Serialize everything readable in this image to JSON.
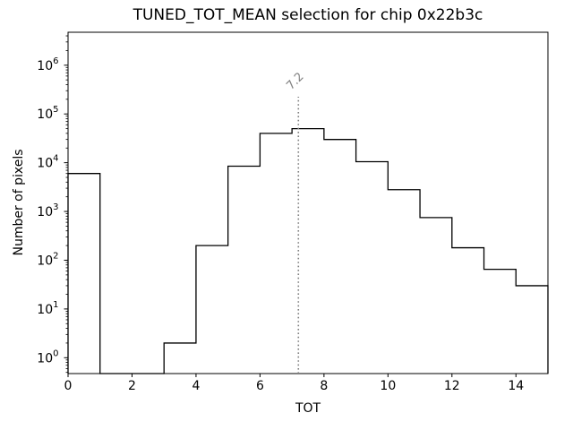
{
  "chart_data": {
    "type": "step-histogram",
    "title": "TUNED_TOT_MEAN selection for chip 0x22b3c",
    "xlabel": "TOT",
    "ylabel": "Number of pixels",
    "xlim": [
      0,
      15
    ],
    "ylog": true,
    "ylim_log10": [
      -0.325,
      6.676
    ],
    "x_ticks": [
      0,
      2,
      4,
      6,
      8,
      10,
      12,
      14
    ],
    "y_tick_exponents": [
      0,
      1,
      2,
      3,
      4,
      5,
      6
    ],
    "bin_edges": [
      0,
      1,
      2,
      3,
      4,
      5,
      6,
      7,
      8,
      9,
      10,
      11,
      12,
      13,
      14,
      15
    ],
    "counts": [
      6000,
      0,
      0,
      2,
      200,
      8500,
      40000,
      50000,
      30000,
      10500,
      2800,
      750,
      180,
      65,
      30
    ],
    "line_color": "#000000",
    "background": "#ffffff",
    "grid": false,
    "legend": null,
    "marker": {
      "value": 7.2,
      "label": "7.2",
      "color": "#808080",
      "style": "dotted"
    }
  }
}
